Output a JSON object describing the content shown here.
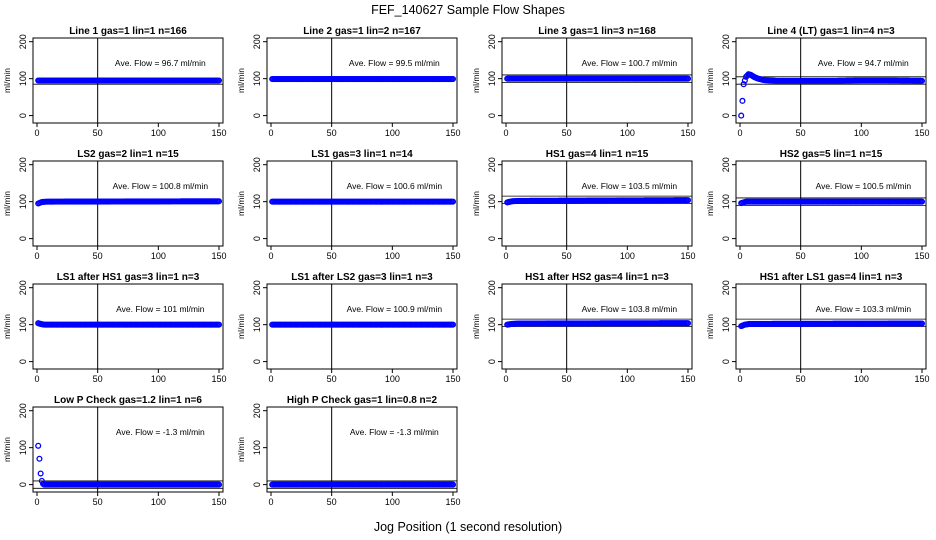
{
  "figure": {
    "title": "FEF_140627  Sample Flow Shapes",
    "xlabel": "Jog Position (1 second resolution)"
  },
  "chart_data": [
    {
      "type": "scatter",
      "title": "Line 1 gas=1 lin=1 n=166",
      "ylabel": "ml/min",
      "xlim": [
        0,
        150
      ],
      "ylim": [
        -20,
        210
      ],
      "xticks": [
        0,
        50,
        100,
        150
      ],
      "yticks": [
        0,
        100,
        200
      ],
      "vline_x": 50,
      "hline_y": [
        85
      ],
      "annotation": "Ave. Flow = 96.7  ml/min",
      "series": [
        {
          "x": [
            1,
            150
          ],
          "y": [
            95,
            95
          ]
        }
      ],
      "marker_color": "#0000ff"
    },
    {
      "type": "scatter",
      "title": "Line 2 gas=1 lin=2 n=167",
      "ylabel": "ml/min",
      "xlim": [
        0,
        150
      ],
      "ylim": [
        -20,
        210
      ],
      "xticks": [
        0,
        50,
        100,
        150
      ],
      "yticks": [
        0,
        100,
        200
      ],
      "vline_x": 50,
      "hline_y": [],
      "annotation": "Ave. Flow = 99.5  ml/min",
      "series": [
        {
          "x": [
            1,
            150
          ],
          "y": [
            99,
            99
          ]
        }
      ],
      "marker_color": "#0000ff"
    },
    {
      "type": "scatter",
      "title": "Line 3 gas=1 lin=3 n=168",
      "ylabel": "ml/min",
      "xlim": [
        0,
        150
      ],
      "ylim": [
        -20,
        210
      ],
      "xticks": [
        0,
        50,
        100,
        150
      ],
      "yticks": [
        0,
        100,
        200
      ],
      "vline_x": 50,
      "hline_y": [
        110,
        90
      ],
      "annotation": "Ave. Flow = 100.7  ml/min",
      "series": [
        {
          "x": [
            1,
            150
          ],
          "y": [
            100,
            100
          ]
        }
      ],
      "marker_color": "#0000ff"
    },
    {
      "type": "scatter",
      "title": "Line 4 (LT) gas=1 lin=4 n=3",
      "ylabel": "ml/min",
      "xlim": [
        0,
        150
      ],
      "ylim": [
        -20,
        210
      ],
      "xticks": [
        0,
        50,
        100,
        150
      ],
      "yticks": [
        0,
        100,
        200
      ],
      "vline_x": 50,
      "hline_y": [
        105,
        85
      ],
      "annotation": "Ave. Flow = 94.7  ml/min",
      "series": [
        {
          "x": [
            1,
            2,
            3,
            5,
            7,
            9,
            12,
            15,
            20,
            30,
            50,
            80,
            100,
            120,
            150
          ],
          "y": [
            0,
            40,
            85,
            105,
            112,
            110,
            104,
            100,
            96,
            94,
            94,
            94,
            95,
            95,
            94
          ]
        }
      ],
      "marker_color": "#0000ff"
    },
    {
      "type": "scatter",
      "title": "LS2 gas=2 lin=1 n=15",
      "ylabel": "ml/min",
      "xlim": [
        0,
        150
      ],
      "ylim": [
        -20,
        210
      ],
      "xticks": [
        0,
        50,
        100,
        150
      ],
      "yticks": [
        0,
        100,
        200
      ],
      "vline_x": 50,
      "hline_y": [],
      "annotation": "Ave. Flow = 100.8  ml/min",
      "series": [
        {
          "x": [
            1,
            4,
            8,
            150
          ],
          "y": [
            95,
            99,
            100,
            101
          ]
        }
      ],
      "marker_color": "#0000ff"
    },
    {
      "type": "scatter",
      "title": "LS1 gas=3 lin=1 n=14",
      "ylabel": "ml/min",
      "xlim": [
        0,
        150
      ],
      "ylim": [
        -20,
        210
      ],
      "xticks": [
        0,
        50,
        100,
        150
      ],
      "yticks": [
        0,
        100,
        200
      ],
      "vline_x": 50,
      "hline_y": [],
      "annotation": "Ave. Flow = 100.6  ml/min",
      "series": [
        {
          "x": [
            1,
            150
          ],
          "y": [
            100,
            100
          ]
        }
      ],
      "marker_color": "#0000ff"
    },
    {
      "type": "scatter",
      "title": "HS1 gas=4 lin=1 n=15",
      "ylabel": "ml/min",
      "xlim": [
        0,
        150
      ],
      "ylim": [
        -20,
        210
      ],
      "xticks": [
        0,
        50,
        100,
        150
      ],
      "yticks": [
        0,
        100,
        200
      ],
      "vline_x": 50,
      "hline_y": [
        115,
        95
      ],
      "annotation": "Ave. Flow = 103.5  ml/min",
      "series": [
        {
          "x": [
            1,
            5,
            10,
            150
          ],
          "y": [
            98,
            101,
            102,
            104
          ]
        }
      ],
      "marker_color": "#0000ff"
    },
    {
      "type": "scatter",
      "title": "HS2 gas=5 lin=1 n=15",
      "ylabel": "ml/min",
      "xlim": [
        0,
        150
      ],
      "ylim": [
        -20,
        210
      ],
      "xticks": [
        0,
        50,
        100,
        150
      ],
      "yticks": [
        0,
        100,
        200
      ],
      "vline_x": 50,
      "hline_y": [
        110,
        90
      ],
      "annotation": "Ave. Flow = 100.5  ml/min",
      "series": [
        {
          "x": [
            1,
            5,
            150
          ],
          "y": [
            96,
            100,
            100
          ]
        }
      ],
      "marker_color": "#0000ff"
    },
    {
      "type": "scatter",
      "title": "LS1 after HS1 gas=3 lin=1 n=3",
      "ylabel": "ml/min",
      "xlim": [
        0,
        150
      ],
      "ylim": [
        -20,
        210
      ],
      "xticks": [
        0,
        50,
        100,
        150
      ],
      "yticks": [
        0,
        100,
        200
      ],
      "vline_x": 50,
      "hline_y": [],
      "annotation": "Ave. Flow = 101  ml/min",
      "series": [
        {
          "x": [
            1,
            3,
            6,
            150
          ],
          "y": [
            104,
            102,
            100,
            100
          ]
        }
      ],
      "marker_color": "#0000ff"
    },
    {
      "type": "scatter",
      "title": "LS1 after LS2 gas=3 lin=1 n=3",
      "ylabel": "ml/min",
      "xlim": [
        0,
        150
      ],
      "ylim": [
        -20,
        210
      ],
      "xticks": [
        0,
        50,
        100,
        150
      ],
      "yticks": [
        0,
        100,
        200
      ],
      "vline_x": 50,
      "hline_y": [],
      "annotation": "Ave. Flow = 100.9  ml/min",
      "series": [
        {
          "x": [
            1,
            150
          ],
          "y": [
            100,
            100
          ]
        }
      ],
      "marker_color": "#0000ff"
    },
    {
      "type": "scatter",
      "title": "HS1 after HS2 gas=4 lin=1 n=3",
      "ylabel": "ml/min",
      "xlim": [
        0,
        150
      ],
      "ylim": [
        -20,
        210
      ],
      "xticks": [
        0,
        50,
        100,
        150
      ],
      "yticks": [
        0,
        100,
        200
      ],
      "vline_x": 50,
      "hline_y": [
        115,
        95
      ],
      "annotation": "Ave. Flow = 103.8  ml/min",
      "series": [
        {
          "x": [
            1,
            5,
            10,
            150
          ],
          "y": [
            100,
            102,
            103,
            104
          ]
        }
      ],
      "marker_color": "#0000ff"
    },
    {
      "type": "scatter",
      "title": "HS1 after LS1 gas=4 lin=1 n=3",
      "ylabel": "ml/min",
      "xlim": [
        0,
        150
      ],
      "ylim": [
        -20,
        210
      ],
      "xticks": [
        0,
        50,
        100,
        150
      ],
      "yticks": [
        0,
        100,
        200
      ],
      "vline_x": 50,
      "hline_y": [
        115,
        95
      ],
      "annotation": "Ave. Flow = 103.3  ml/min",
      "series": [
        {
          "x": [
            1,
            4,
            8,
            150
          ],
          "y": [
            96,
            100,
            102,
            103
          ]
        }
      ],
      "marker_color": "#0000ff"
    },
    {
      "type": "scatter",
      "title": "Low P Check gas=1.2 lin=1 n=6",
      "ylabel": "ml/min",
      "xlim": [
        0,
        150
      ],
      "ylim": [
        -20,
        210
      ],
      "xticks": [
        0,
        50,
        100,
        150
      ],
      "yticks": [
        0,
        100,
        200
      ],
      "vline_x": 50,
      "hline_y": [
        10,
        -10
      ],
      "annotation": "Ave. Flow = -1.3  ml/min",
      "series": [
        {
          "x": [
            1,
            2,
            3,
            4,
            5,
            6,
            8,
            150
          ],
          "y": [
            105,
            70,
            30,
            10,
            2,
            0,
            0,
            0
          ]
        }
      ],
      "marker_color": "#0000ff"
    },
    {
      "type": "scatter",
      "title": "High P Check gas=1 lin=0.8 n=2",
      "ylabel": "ml/min",
      "xlim": [
        0,
        150
      ],
      "ylim": [
        -20,
        210
      ],
      "xticks": [
        0,
        50,
        100,
        150
      ],
      "yticks": [
        0,
        100,
        200
      ],
      "vline_x": 50,
      "hline_y": [
        10,
        -10
      ],
      "annotation": "Ave. Flow = -1.3  ml/min",
      "series": [
        {
          "x": [
            1,
            150
          ],
          "y": [
            0,
            0
          ]
        }
      ],
      "marker_color": "#0000ff"
    }
  ]
}
